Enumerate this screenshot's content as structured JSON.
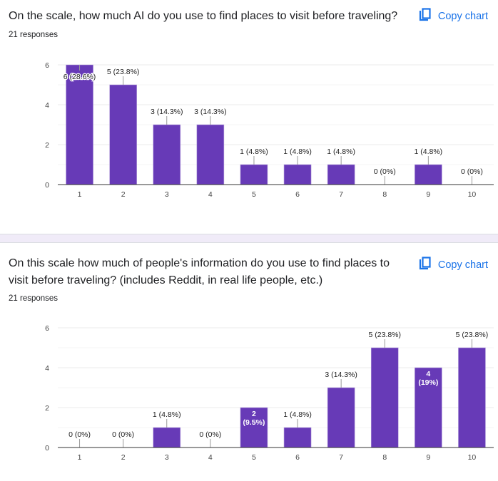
{
  "colors": {
    "bar": "#673ab7",
    "accent": "#1a73e8",
    "separator": "#f0ebf8"
  },
  "copy_label": "Copy chart",
  "copy_icon": "copy-icon",
  "chart_data": [
    {
      "type": "bar",
      "title": "On the scale, how much AI do you use to find places to visit before traveling?",
      "subtitle": "21 responses",
      "xlabel": "",
      "ylabel": "",
      "ylim": [
        0,
        6
      ],
      "yticks": [
        0,
        2,
        4,
        6
      ],
      "grid": true,
      "categories": [
        "1",
        "2",
        "3",
        "4",
        "5",
        "6",
        "7",
        "8",
        "9",
        "10"
      ],
      "values": [
        6,
        5,
        3,
        3,
        1,
        1,
        1,
        0,
        1,
        0
      ],
      "data_labels": [
        "6 (28.6%)",
        "5 (23.8%)",
        "3 (14.3%)",
        "3 (14.3%)",
        "1 (4.8%)",
        "1 (4.8%)",
        "1 (4.8%)",
        "0 (0%)",
        "1 (4.8%)",
        "0 (0%)"
      ]
    },
    {
      "type": "bar",
      "title": "On this scale how much of people's information do you use to find places to visit before traveling? (includes Reddit, in real life people, etc.)",
      "subtitle": "21 responses",
      "xlabel": "",
      "ylabel": "",
      "ylim": [
        0,
        6
      ],
      "yticks": [
        0,
        2,
        4,
        6
      ],
      "grid": true,
      "categories": [
        "1",
        "2",
        "3",
        "4",
        "5",
        "6",
        "7",
        "8",
        "9",
        "10"
      ],
      "values": [
        0,
        0,
        1,
        0,
        2,
        1,
        3,
        5,
        4,
        5
      ],
      "data_labels": [
        "0 (0%)",
        "0 (0%)",
        "1 (4.8%)",
        "0 (0%)",
        "2 (9.5%)",
        "1 (4.8%)",
        "3 (14.3%)",
        "5 (23.8%)",
        "4 (19%)",
        "5 (23.8%)"
      ]
    }
  ]
}
